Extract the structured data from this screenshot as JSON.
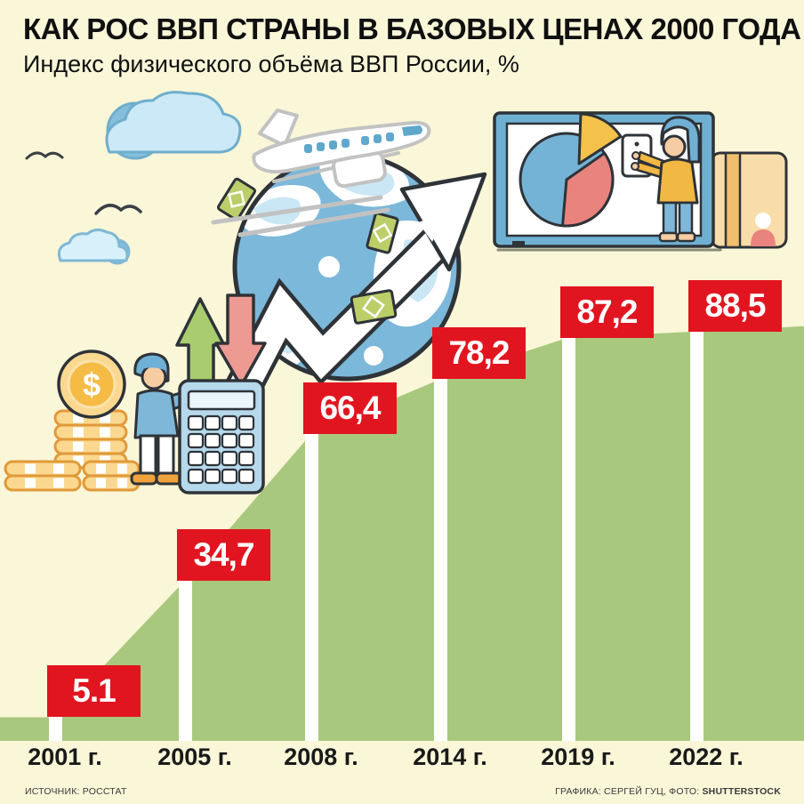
{
  "title": "КАК РОС ВВП СТРАНЫ В БАЗОВЫХ ЦЕНАХ 2000 ГОДА",
  "subtitle": "Индекс физического объёма ВВП России, %",
  "chart_data": {
    "type": "area",
    "title": "Индекс физического объёма ВВП России, %",
    "categories": [
      "2001 г.",
      "2005 г.",
      "2008 г.",
      "2014 г.",
      "2019 г.",
      "2022 г."
    ],
    "values": [
      5.1,
      34.7,
      66.4,
      78.2,
      87.2,
      88.5
    ],
    "value_labels": [
      "5.1",
      "34,7",
      "66,4",
      "78,2",
      "87,2",
      "88,5"
    ],
    "ylim": [
      0,
      100
    ],
    "grid": false,
    "legend": false,
    "area_color": "#A8C87E",
    "label_bg_color": "#E11520",
    "label_text_color": "#FFFFFF"
  },
  "footer": {
    "source": "ИСТОЧНИК: РОССТАТ",
    "credits_prefix": "ГРАФИКА: СЕРГЕЙ ГУЦ, ФОТО: ",
    "credits_bold": "SHUTTERSTOCK"
  },
  "icons": {
    "dollar_sign": "$",
    "names": [
      "cloud-icon",
      "bird-icon",
      "airplane-icon",
      "globe-icon",
      "growth-arrow-icon",
      "up-arrow-icon",
      "down-arrow-icon",
      "banknote-icon",
      "coin-icon",
      "coin-stack-icon",
      "person-calculator-icon",
      "calculator-icon",
      "presentation-board-icon",
      "pie-chart-icon",
      "person-tablet-icon",
      "credit-card-icon"
    ]
  },
  "colors": {
    "background": "#FAF6D8",
    "area_green": "#A8C87E",
    "accent_red": "#E11520"
  }
}
